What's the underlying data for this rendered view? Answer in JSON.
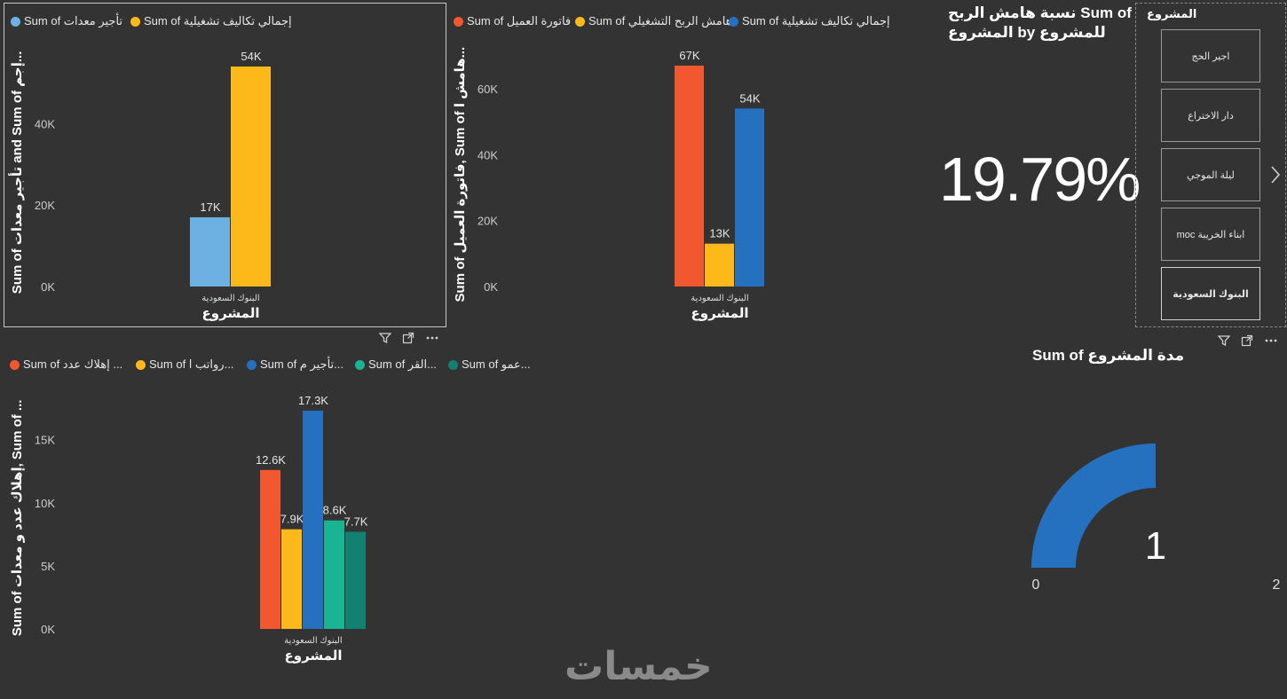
{
  "colors": {
    "background": "#333333",
    "red": "#F1582F",
    "yellow": "#FDB81A",
    "blue": "#2671BF",
    "lightblue": "#6DB1E3",
    "teal": "#1AB393",
    "darkteal": "#138172",
    "axis_text": "#cccccc"
  },
  "chart1": {
    "legend": [
      {
        "label": "Sum of تأجير معدات",
        "color": "#6DB1E3"
      },
      {
        "label": "Sum of إجمالي تكاليف تشغيلية",
        "color": "#FDB81A"
      }
    ],
    "ylabel": "Sum of تأجير معدات and Sum of إجم...",
    "xlabel": "المشروع",
    "category": "البنوك السعودية",
    "ticks": [
      "0K",
      "20K",
      "40K"
    ],
    "data_labels": [
      "17K",
      "54K"
    ]
  },
  "chart2": {
    "legend": [
      {
        "label": "Sum of فاتورة العميل",
        "color": "#F1582F"
      },
      {
        "label": "Sum of هامش الربح التشغيلي",
        "color": "#FDB81A"
      },
      {
        "label": "Sum of إجمالي تكاليف تشغيلية",
        "color": "#2671BF"
      }
    ],
    "ylabel": "Sum of فاتورة العميل, Sum of هامش ا...",
    "xlabel": "المشروع",
    "category": "البنوك السعودية",
    "ticks": [
      "0K",
      "20K",
      "40K",
      "60K"
    ],
    "data_labels": [
      "67K",
      "13K",
      "54K"
    ]
  },
  "chart3": {
    "legend": [
      {
        "label": "Sum of إهلاك عدد ...",
        "color": "#F1582F"
      },
      {
        "label": "Sum of رواتب ا...",
        "color": "#FDB81A"
      },
      {
        "label": "Sum of تأجير م...",
        "color": "#2671BF"
      },
      {
        "label": "Sum of القر...",
        "color": "#1AB393"
      },
      {
        "label": "Sum of عمو...",
        "color": "#138172"
      }
    ],
    "ylabel": "Sum of إهلاك عدد و معدات, Sum of ...",
    "xlabel": "المشروع",
    "category": "البنوك السعودية",
    "ticks": [
      "0K",
      "5K",
      "10K",
      "15K"
    ],
    "data_labels": [
      "12.6K",
      "7.9K",
      "17.3K",
      "8.6K",
      "7.7K"
    ]
  },
  "kpi": {
    "title_line1": "نسبة هامش الربح Sum of",
    "title_line2": "المشروع by للمشروع",
    "value": "19.79%"
  },
  "slicer": {
    "title": "المشروع",
    "items": [
      {
        "label": "اجير الحج"
      },
      {
        "label": "دار الاختراع"
      },
      {
        "label": "ليلة الموجي"
      },
      {
        "label": "moc ابناء الخريبة"
      },
      {
        "label": "البنوك السعودية"
      }
    ],
    "next_icon": "chevron-right-icon"
  },
  "gauge": {
    "title": "Sum of مدة المشروع",
    "value": "1",
    "min": "0",
    "max": "2",
    "fraction": 0.5
  },
  "header_icons": [
    "filter-icon",
    "focus-mode-icon",
    "more-options-icon"
  ],
  "watermark": "خمسات",
  "chart_data": [
    {
      "type": "bar",
      "categories": [
        "البنوك السعودية"
      ],
      "series": [
        {
          "name": "Sum of تأجير معدات",
          "values": [
            17000
          ]
        },
        {
          "name": "Sum of إجمالي تكاليف تشغيلية",
          "values": [
            54000
          ]
        }
      ],
      "xlabel": "المشروع",
      "ylabel": "Sum of تأجير معدات and Sum of إجم...",
      "ylim": [
        0,
        56000
      ]
    },
    {
      "type": "bar",
      "categories": [
        "البنوك السعودية"
      ],
      "series": [
        {
          "name": "Sum of فاتورة العميل",
          "values": [
            67000
          ]
        },
        {
          "name": "Sum of هامش الربح التشغيلي",
          "values": [
            13000
          ]
        },
        {
          "name": "Sum of إجمالي تكاليف تشغيلية",
          "values": [
            54000
          ]
        }
      ],
      "xlabel": "المشروع",
      "ylabel": "Sum of فاتورة العميل, Sum of هامش ا...",
      "ylim": [
        0,
        68000
      ]
    },
    {
      "type": "bar",
      "categories": [
        "البنوك السعودية"
      ],
      "series": [
        {
          "name": "Sum of إهلاك عدد ...",
          "values": [
            12600
          ]
        },
        {
          "name": "Sum of رواتب ا...",
          "values": [
            7900
          ]
        },
        {
          "name": "Sum of تأجير م...",
          "values": [
            17300
          ]
        },
        {
          "name": "Sum of القر...",
          "values": [
            8600
          ]
        },
        {
          "name": "Sum of عمو...",
          "values": [
            7700
          ]
        }
      ],
      "xlabel": "المشروع",
      "ylabel": "Sum of إهلاك عدد و معدات, Sum of ...",
      "ylim": [
        0,
        17600
      ]
    }
  ]
}
